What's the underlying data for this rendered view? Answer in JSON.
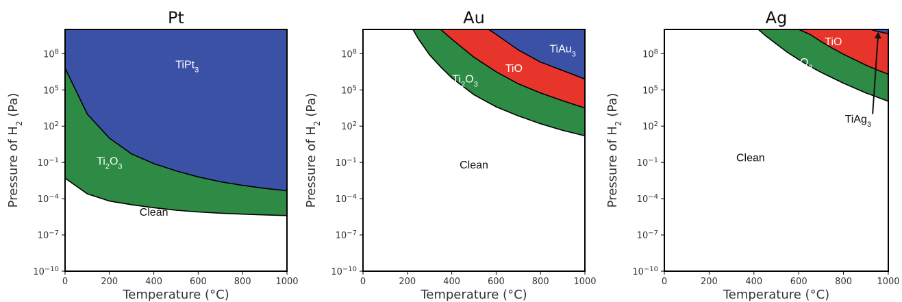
{
  "chart_data": [
    {
      "type": "area",
      "title": "Pt",
      "xlabel": "Temperature (°C)",
      "ylabel": "Pressure of H2 (Pa)",
      "xlim": [
        0,
        1000
      ],
      "ylim_exp": [
        -10,
        10
      ],
      "y_log_scale": true,
      "x_ticks": [
        "0",
        "200",
        "400",
        "600",
        "800",
        "1000"
      ],
      "y_tick_exponents": [
        "8",
        "5",
        "2",
        "−1",
        "−4",
        "−7",
        "−10"
      ],
      "grid": false,
      "x": [
        0,
        100,
        200,
        300,
        400,
        500,
        600,
        700,
        800,
        900,
        1000
      ],
      "boundaries": [
        {
          "lower_region": "Clean",
          "upper_region": "Ti2O3",
          "log10_p": [
            -2.3,
            -3.6,
            -4.2,
            -4.5,
            -4.75,
            -4.95,
            -5.1,
            -5.2,
            -5.28,
            -5.34,
            -5.4
          ]
        },
        {
          "lower_region": "Ti2O3",
          "upper_region": "TiPt3",
          "log10_p": [
            6.8,
            3.0,
            1.0,
            -0.3,
            -1.1,
            -1.7,
            -2.2,
            -2.6,
            -2.9,
            -3.15,
            -3.35
          ]
        }
      ],
      "regions": [
        {
          "name": "Clean",
          "label_main": "Clean",
          "label_sub": "",
          "label_tail": "",
          "color": "#ffffff",
          "text_color": "#111111",
          "label_at": [
            400,
            -5.4
          ]
        },
        {
          "name": "Ti2O3",
          "label_main": "Ti",
          "label_sub": "2",
          "label_tail": "O",
          "label_sub2": "3",
          "color": "#2e8b45",
          "text_color": "#ffffff",
          "label_at": [
            200,
            -1.2
          ]
        },
        {
          "name": "TiPt3",
          "label_main": "TiPt",
          "label_sub": "3",
          "label_tail": "",
          "color": "#3a51a6",
          "text_color": "#ffffff",
          "label_at": [
            550,
            6.8
          ]
        }
      ]
    },
    {
      "type": "area",
      "title": "Au",
      "xlabel": "Temperature (°C)",
      "ylabel": "Pressure of H2 (Pa)",
      "xlim": [
        0,
        1000
      ],
      "ylim_exp": [
        -10,
        10
      ],
      "y_log_scale": true,
      "x_ticks": [
        "0",
        "200",
        "400",
        "600",
        "800",
        "1000"
      ],
      "y_tick_exponents": [
        "8",
        "5",
        "2",
        "−1",
        "−4",
        "−7",
        "−10"
      ],
      "grid": false,
      "x": [
        225,
        250,
        300,
        350,
        400,
        500,
        600,
        700,
        800,
        900,
        1000
      ],
      "boundaries": [
        {
          "lower_region": "Clean",
          "upper_region": "Ti2O3",
          "log10_p": [
            10.0,
            9.2,
            7.9,
            6.9,
            6.0,
            4.6,
            3.6,
            2.85,
            2.2,
            1.65,
            1.2
          ]
        },
        {
          "lower_region": "Ti2O3",
          "upper_region": "TiO",
          "log10_p": [
            12.0,
            12.0,
            10.5,
            10.0,
            9.2,
            7.7,
            6.5,
            5.5,
            4.75,
            4.1,
            3.5
          ]
        },
        {
          "lower_region": "TiO",
          "upper_region": "TiAu3",
          "log10_p": [
            12.0,
            12.0,
            12.0,
            12.0,
            12.0,
            10.8,
            9.6,
            8.3,
            7.3,
            6.6,
            5.9
          ]
        }
      ],
      "regions": [
        {
          "name": "Clean",
          "label_main": "Clean",
          "label_sub": "",
          "label_tail": "",
          "color": "#ffffff",
          "text_color": "#111111",
          "label_at": [
            500,
            -1.5
          ]
        },
        {
          "name": "Ti2O3",
          "label_main": "Ti",
          "label_sub": "2",
          "label_tail": "O",
          "label_sub2": "3",
          "color": "#2e8b45",
          "text_color": "#ffffff",
          "label_at": [
            460,
            5.6
          ]
        },
        {
          "name": "TiO",
          "label_main": "TiO",
          "label_sub": "",
          "label_tail": "",
          "color": "#e8352b",
          "text_color": "#ffffff",
          "label_at": [
            680,
            6.5
          ]
        },
        {
          "name": "TiAu3",
          "label_main": "TiAu",
          "label_sub": "3",
          "label_tail": "",
          "color": "#3a51a6",
          "text_color": "#ffffff",
          "label_at": [
            900,
            8.1
          ]
        }
      ]
    },
    {
      "type": "area",
      "title": "Ag",
      "xlabel": "Temperature (°C)",
      "ylabel": "Pressure of H2 (Pa)",
      "xlim": [
        0,
        1000
      ],
      "ylim_exp": [
        -10,
        10
      ],
      "y_log_scale": true,
      "x_ticks": [
        "0",
        "200",
        "400",
        "600",
        "800",
        "1000"
      ],
      "y_tick_exponents": [
        "8",
        "5",
        "2",
        "−1",
        "−4",
        "−7",
        "−10"
      ],
      "grid": false,
      "x": [
        420,
        450,
        500,
        550,
        600,
        650,
        700,
        750,
        800,
        850,
        900,
        950,
        1000
      ],
      "boundaries": [
        {
          "lower_region": "Clean",
          "upper_region": "Ti2O3",
          "log10_p": [
            10.0,
            9.5,
            8.8,
            8.1,
            7.5,
            6.95,
            6.45,
            6.0,
            5.55,
            5.15,
            4.75,
            4.4,
            4.05
          ]
        },
        {
          "lower_region": "Ti2O3",
          "upper_region": "TiO",
          "log10_p": [
            12.0,
            12.0,
            12.0,
            12.0,
            10.0,
            9.6,
            9.0,
            8.45,
            7.95,
            7.5,
            7.05,
            6.65,
            6.3
          ]
        },
        {
          "lower_region": "TiO",
          "upper_region": "TiAg3",
          "log10_p": [
            12.0,
            12.0,
            12.0,
            12.0,
            12.0,
            12.0,
            12.0,
            12.0,
            12.0,
            10.4,
            10.1,
            9.85,
            9.65
          ]
        }
      ],
      "regions": [
        {
          "name": "Clean",
          "label_main": "Clean",
          "label_sub": "",
          "label_tail": "",
          "color": "#ffffff",
          "text_color": "#111111",
          "label_at": [
            385,
            -0.9
          ]
        },
        {
          "name": "Ti2O3",
          "label_main": "Ti",
          "label_sub": "2",
          "label_tail": "O",
          "label_sub2": "3",
          "color": "#2e8b45",
          "text_color": "#ffffff",
          "label_at": [
            605,
            7.0
          ]
        },
        {
          "name": "TiO",
          "label_main": "TiO",
          "label_sub": "",
          "label_tail": "",
          "color": "#e8352b",
          "text_color": "#ffffff",
          "label_at": [
            755,
            8.7
          ]
        },
        {
          "name": "TiAg3",
          "label_main": "TiAg",
          "label_sub": "3",
          "label_tail": "",
          "color": "#3a51a6",
          "text_color": "#111111",
          "label_at": [
            865,
            2.3
          ]
        }
      ],
      "annotation": {
        "from": [
          930,
          3.0
        ],
        "to": [
          955,
          9.7
        ],
        "label": "TiAg3"
      }
    }
  ]
}
